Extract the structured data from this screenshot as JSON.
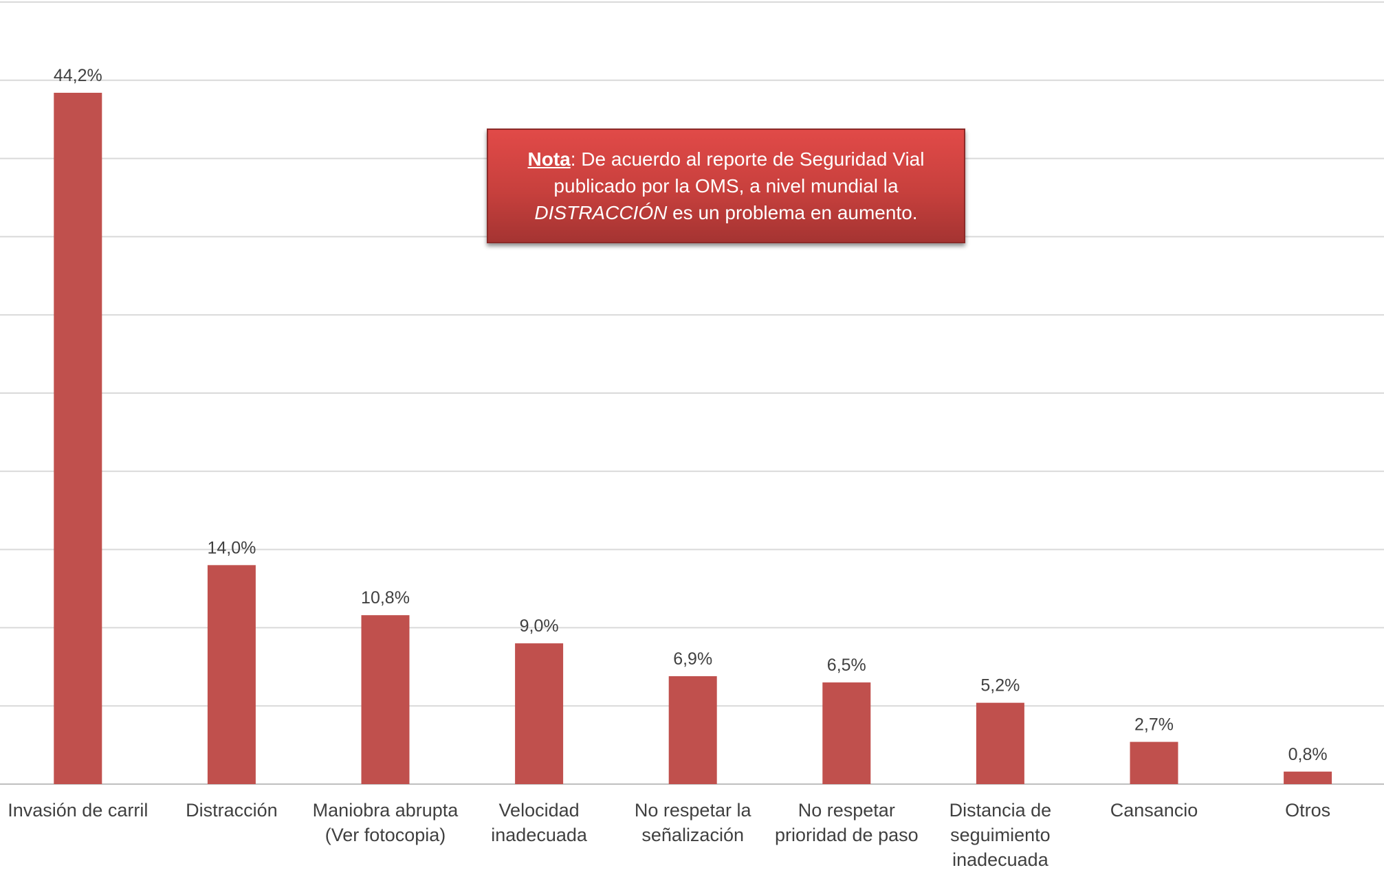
{
  "chart_data": {
    "type": "bar",
    "categories": [
      [
        "Invasión de carril"
      ],
      [
        "Distracción"
      ],
      [
        "Maniobra abrupta",
        "(Ver fotocopia)"
      ],
      [
        "Velocidad",
        "inadecuada"
      ],
      [
        "No respetar la",
        "señalización"
      ],
      [
        "No respetar",
        "prioridad de paso"
      ],
      [
        "Distancia de",
        "seguimiento",
        "inadecuada"
      ],
      [
        "Cansancio"
      ],
      [
        "Otros"
      ]
    ],
    "values": [
      44.2,
      14.0,
      10.8,
      9.0,
      6.9,
      6.5,
      5.2,
      2.7,
      0.8
    ],
    "data_labels": [
      "44,2%",
      "14,0%",
      "10,8%",
      "9,0%",
      "6,9%",
      "6,5%",
      "5,2%",
      "2,7%",
      "0,8%"
    ],
    "ylim": [
      0,
      50
    ],
    "ytick_step": 5,
    "grid": true,
    "bar_color": "#c0504d"
  },
  "note": {
    "label": "Nota",
    "part1": ": De acuerdo al reporte de Seguridad Vial publicado por la OMS, a nivel mundial la ",
    "emphasis": "DISTRACCIÓN",
    "part2": " es  un problema en aumento.",
    "background": "#c0504d"
  }
}
